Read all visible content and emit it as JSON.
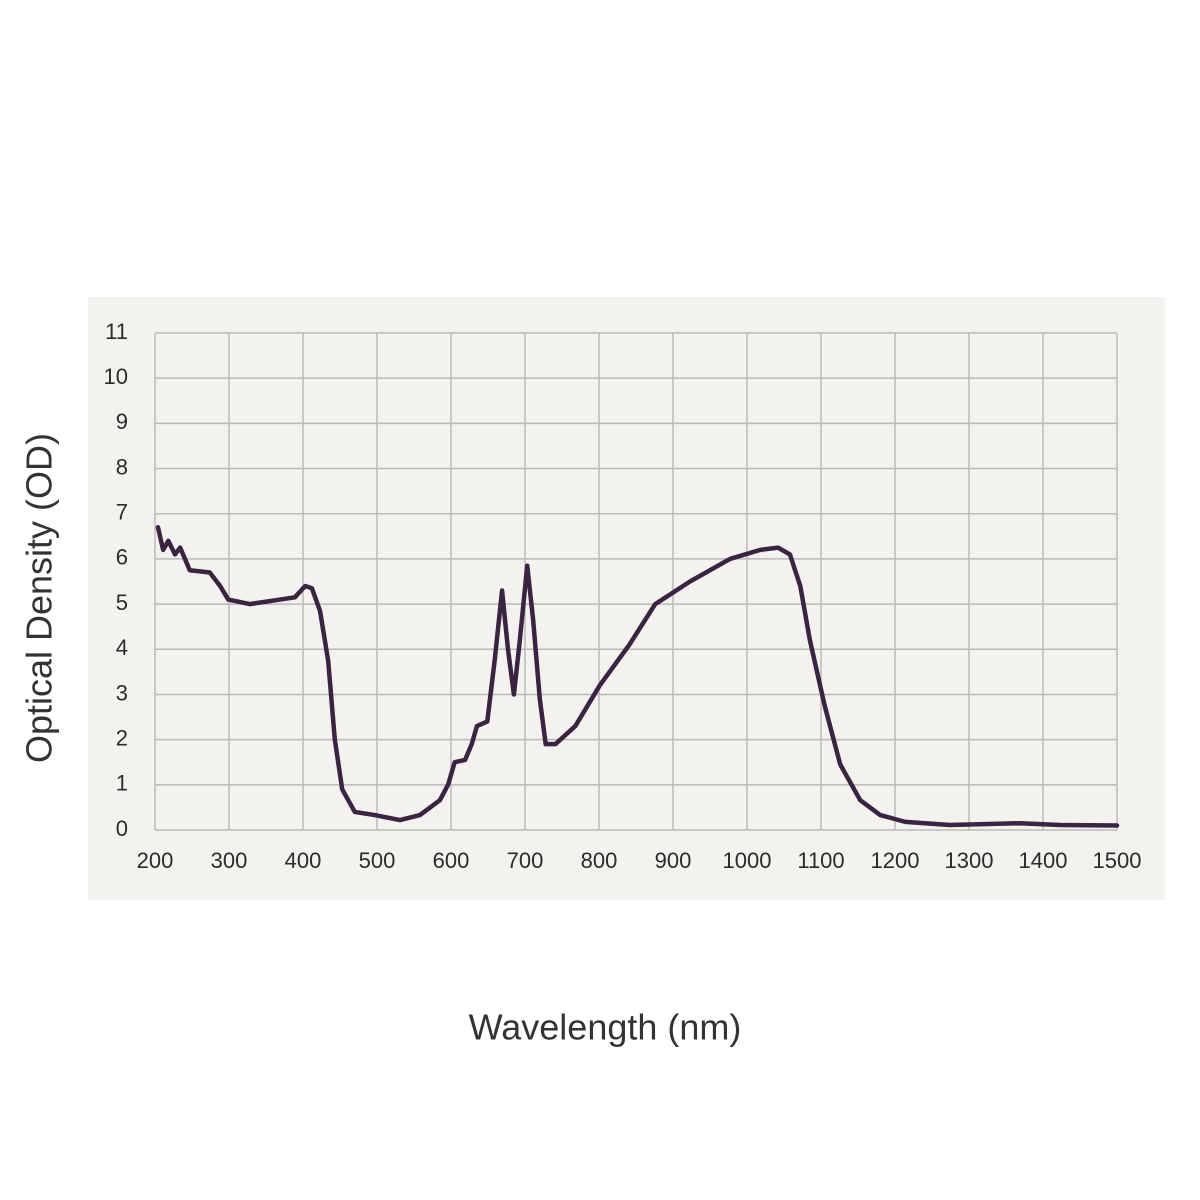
{
  "chart_data": {
    "type": "line",
    "x_label": "Wavelength (nm)",
    "y_label": "Optical Density (OD)",
    "x": [
      204,
      211,
      218,
      227,
      234,
      247,
      274,
      288,
      299,
      328,
      369,
      389,
      403,
      412,
      423,
      434,
      443,
      453,
      470,
      497,
      531,
      558,
      585,
      596,
      605,
      619,
      628,
      635,
      649,
      659,
      669,
      677,
      685,
      693,
      703,
      711,
      720,
      728,
      741,
      768,
      801,
      841,
      876,
      923,
      977,
      1018,
      1042,
      1058,
      1072,
      1085,
      1105,
      1126,
      1153,
      1180,
      1214,
      1274,
      1369,
      1423,
      1500
    ],
    "series": [
      {
        "name": "Optical Density",
        "color": "#3a2442",
        "values": [
          6.7,
          6.2,
          6.4,
          6.1,
          6.25,
          5.75,
          5.7,
          5.4,
          5.1,
          5.0,
          5.1,
          5.15,
          5.4,
          5.35,
          4.85,
          3.75,
          2.0,
          0.9,
          0.4,
          0.33,
          0.22,
          0.33,
          0.66,
          1.0,
          1.5,
          1.55,
          1.9,
          2.3,
          2.4,
          3.75,
          5.3,
          4.0,
          3.0,
          4.2,
          5.85,
          4.65,
          2.9,
          1.9,
          1.9,
          2.3,
          3.2,
          4.1,
          5.0,
          5.5,
          6.0,
          6.2,
          6.25,
          6.1,
          5.4,
          4.2,
          2.75,
          1.45,
          0.66,
          0.33,
          0.18,
          0.11,
          0.15,
          0.11,
          0.1
        ]
      }
    ],
    "xlim": [
      200,
      1500
    ],
    "ylim": [
      0,
      11
    ],
    "xticks": [
      200,
      300,
      400,
      500,
      600,
      700,
      800,
      900,
      1000,
      1100,
      1200,
      1300,
      1400,
      1500
    ],
    "yticks": [
      0,
      1,
      2,
      3,
      4,
      5,
      6,
      7,
      8,
      9,
      10,
      11
    ],
    "grid": true
  }
}
